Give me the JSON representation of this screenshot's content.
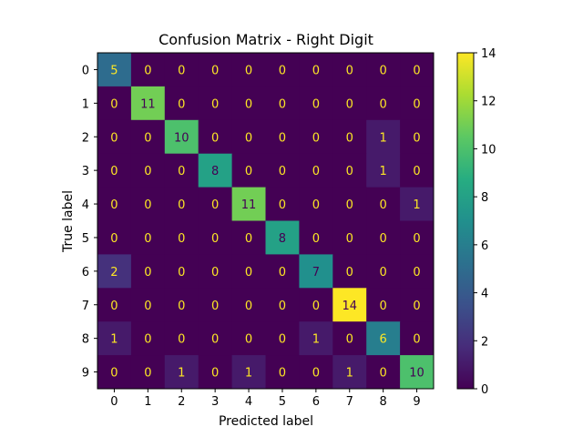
{
  "chart_data": {
    "type": "heatmap",
    "title": "Confusion Matrix - Right Digit",
    "xlabel": "Predicted label",
    "ylabel": "True label",
    "x_categories": [
      "0",
      "1",
      "2",
      "3",
      "4",
      "5",
      "6",
      "7",
      "8",
      "9"
    ],
    "y_categories": [
      "0",
      "1",
      "2",
      "3",
      "4",
      "5",
      "6",
      "7",
      "8",
      "9"
    ],
    "matrix": [
      [
        5,
        0,
        0,
        0,
        0,
        0,
        0,
        0,
        0,
        0
      ],
      [
        0,
        11,
        0,
        0,
        0,
        0,
        0,
        0,
        0,
        0
      ],
      [
        0,
        0,
        10,
        0,
        0,
        0,
        0,
        0,
        1,
        0
      ],
      [
        0,
        0,
        0,
        8,
        0,
        0,
        0,
        0,
        1,
        0
      ],
      [
        0,
        0,
        0,
        0,
        11,
        0,
        0,
        0,
        0,
        1
      ],
      [
        0,
        0,
        0,
        0,
        0,
        8,
        0,
        0,
        0,
        0
      ],
      [
        2,
        0,
        0,
        0,
        0,
        0,
        7,
        0,
        0,
        0
      ],
      [
        0,
        0,
        0,
        0,
        0,
        0,
        0,
        14,
        0,
        0
      ],
      [
        1,
        0,
        0,
        0,
        0,
        0,
        1,
        0,
        6,
        0
      ],
      [
        0,
        0,
        1,
        0,
        1,
        0,
        0,
        1,
        0,
        10
      ]
    ],
    "colormap": "viridis",
    "colorbar": {
      "range": [
        0,
        14
      ],
      "ticks": [
        0,
        2,
        4,
        6,
        8,
        10,
        12,
        14
      ]
    },
    "grid": false
  }
}
